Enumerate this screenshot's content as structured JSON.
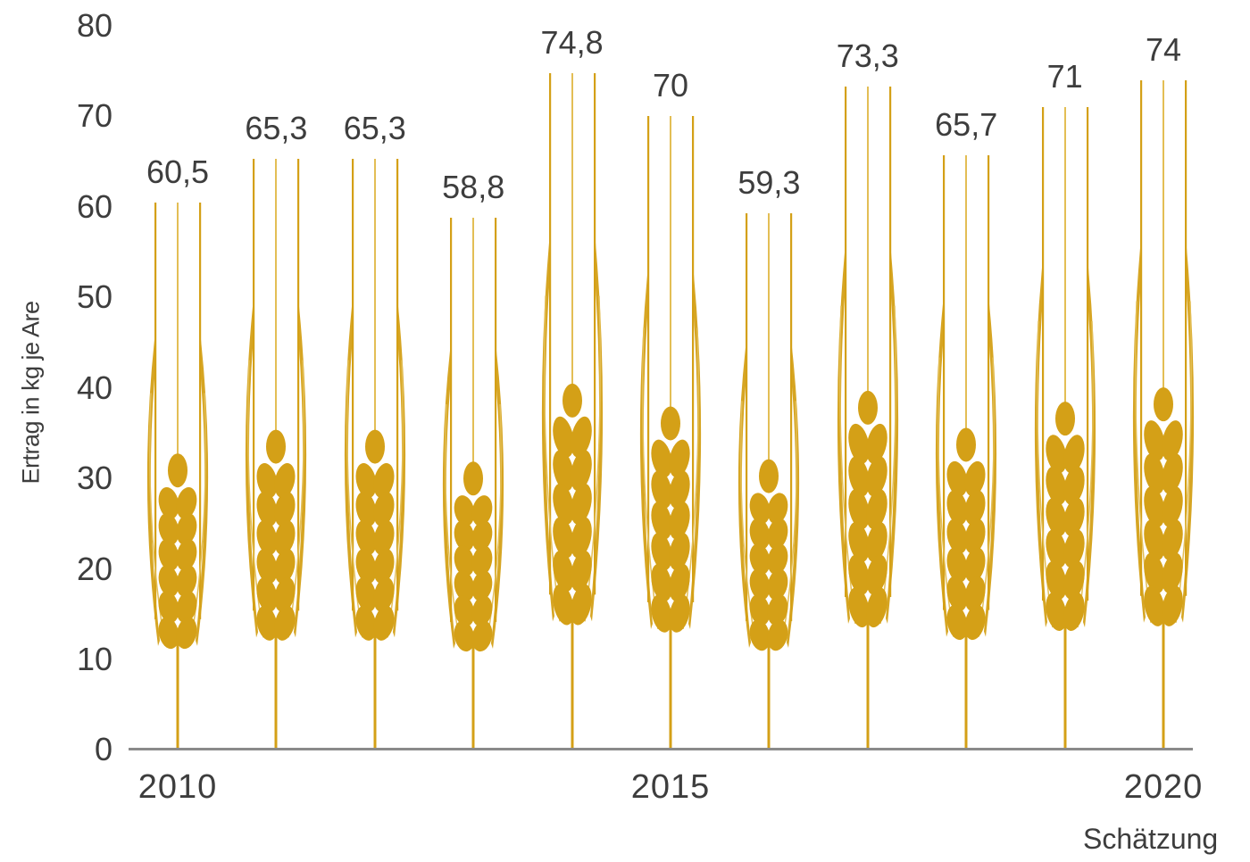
{
  "chart_data": {
    "type": "bar",
    "style": "pictogram (wheat ears as bars)",
    "title": "",
    "xlabel": "",
    "ylabel": "Ertrag in kg je Are",
    "ylim": [
      0,
      80
    ],
    "yticks": [
      0,
      10,
      20,
      30,
      40,
      50,
      60,
      70,
      80
    ],
    "xtick_labels": [
      "2010",
      "2015",
      "2020"
    ],
    "categories": [
      "2010",
      "2011",
      "2012",
      "2013",
      "2014",
      "2015",
      "2016",
      "2017",
      "2018",
      "2019",
      "2020"
    ],
    "values": [
      60.5,
      65.3,
      65.3,
      58.8,
      74.8,
      70,
      59.3,
      73.3,
      65.7,
      71,
      74
    ],
    "value_labels": [
      "60,5",
      "65,3",
      "65,3",
      "58,8",
      "74,8",
      "70",
      "59,3",
      "73,3",
      "65,7",
      "71",
      "74"
    ],
    "annotations": [
      {
        "target": "2020",
        "text": "Schätzung"
      }
    ],
    "grid": false,
    "legend": null,
    "colors": {
      "wheat": "#D4A017",
      "wheat_light": "#E3BE55",
      "axis": "#8A8A8A",
      "text": "#3D3D3D"
    }
  },
  "ylabel": "Ertrag in kg je Are",
  "yticks": [
    "0",
    "10",
    "20",
    "30",
    "40",
    "50",
    "60",
    "70",
    "80"
  ],
  "xticks": {
    "a": "2010",
    "b": "2015",
    "c": "2020"
  },
  "note": "Schätzung"
}
